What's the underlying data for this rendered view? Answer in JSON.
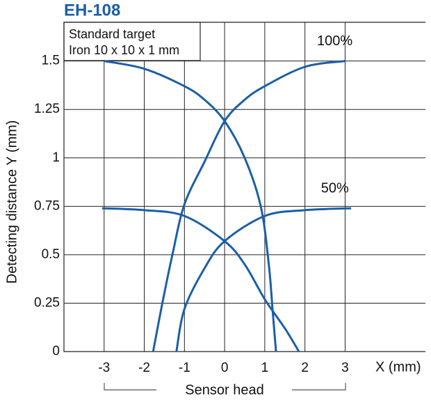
{
  "chart_data": {
    "type": "line",
    "title": "EH-108",
    "note_lines": [
      "Standard target",
      "Iron 10 x 10 x 1 mm"
    ],
    "y_label": "Detecting distance Y (mm)",
    "x_label": "X (mm)",
    "x_caption": "Sensor head",
    "xlim": [
      -4,
      5
    ],
    "ylim": [
      0,
      1.7
    ],
    "xticks": [
      -3,
      -2,
      -1,
      0,
      1,
      2,
      3
    ],
    "yticks": [
      0,
      0.25,
      0.5,
      0.75,
      1,
      1.25,
      1.5
    ],
    "grid": true,
    "color": "#1a5fa8",
    "annotations": [
      {
        "text": "100%",
        "x": 2.3,
        "y": 1.6
      },
      {
        "text": "50%",
        "x": 2.4,
        "y": 0.84
      }
    ],
    "series": [
      {
        "x": [
          -3,
          -2,
          -1,
          -0.5,
          0,
          0.5,
          0.9,
          1.1,
          1.2,
          1.28
        ],
        "values": [
          1.5,
          1.46,
          1.37,
          1.3,
          1.19,
          1.0,
          0.75,
          0.45,
          0.2,
          0
        ]
      },
      {
        "x": [
          3,
          2,
          1,
          0.5,
          0,
          -0.5,
          -1,
          -1.3,
          -1.55,
          -1.78
        ],
        "values": [
          1.5,
          1.47,
          1.37,
          1.3,
          1.19,
          0.98,
          0.76,
          0.5,
          0.25,
          0
        ]
      },
      {
        "x": [
          -3.05,
          -2,
          -1,
          0,
          0.5,
          1,
          1.5,
          1.85
        ],
        "values": [
          0.74,
          0.73,
          0.7,
          0.57,
          0.45,
          0.27,
          0.12,
          0
        ]
      },
      {
        "x": [
          3.15,
          2,
          1,
          0,
          -0.5,
          -1,
          -1.2
        ],
        "values": [
          0.74,
          0.73,
          0.7,
          0.57,
          0.43,
          0.22,
          0
        ]
      }
    ]
  }
}
